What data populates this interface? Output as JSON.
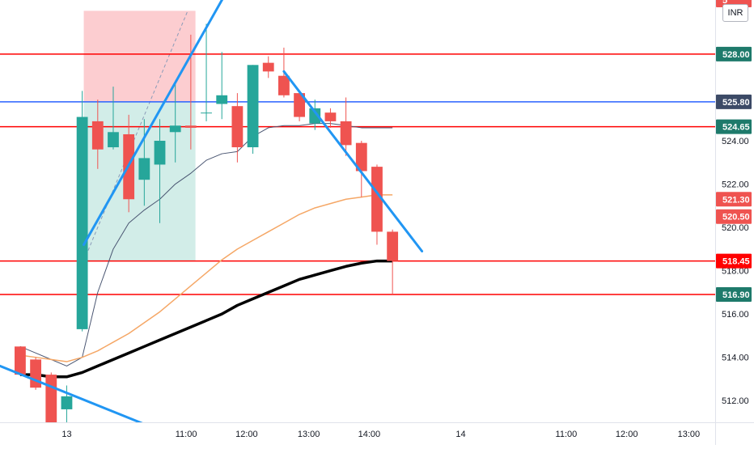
{
  "chart_data": {
    "type": "candlestick",
    "currency": "INR",
    "y_ticks": [
      512,
      514,
      516,
      518,
      520,
      522,
      524
    ],
    "y_tick_labels": [
      "512.00",
      "514.00",
      "516.00",
      "518.00",
      "520.00",
      "522.00",
      "524.00"
    ],
    "ylim": [
      511.0,
      530.5
    ],
    "x_ticks": [
      {
        "bar": 3.0,
        "label": "13"
      },
      {
        "bar": 10.7,
        "label": "11:00"
      },
      {
        "bar": 14.6,
        "label": "12:00"
      },
      {
        "bar": 18.6,
        "label": "13:00"
      },
      {
        "bar": 22.5,
        "label": "14:00"
      },
      {
        "bar": 28.4,
        "label": "14"
      },
      {
        "bar": 35.2,
        "label": "11:00"
      },
      {
        "bar": 39.1,
        "label": "12:00"
      },
      {
        "bar": 43.1,
        "label": "13:00"
      }
    ],
    "xlim": [
      -1.3,
      44.8
    ],
    "bull_color": "#26a69a",
    "bear_color": "#ef5350",
    "candles": [
      {
        "o": 514.5,
        "h": 514.5,
        "l": 513.2,
        "c": 513.2
      },
      {
        "o": 513.9,
        "h": 514.0,
        "l": 512.5,
        "c": 512.6
      },
      {
        "o": 513.2,
        "h": 513.3,
        "l": 510.8,
        "c": 511.0
      },
      {
        "o": 511.6,
        "h": 512.7,
        "l": 511.0,
        "c": 512.2
      },
      {
        "o": 515.3,
        "h": 526.3,
        "l": 515.2,
        "c": 525.1
      },
      {
        "o": 524.9,
        "h": 525.9,
        "l": 522.7,
        "c": 523.6
      },
      {
        "o": 523.7,
        "h": 526.5,
        "l": 523.6,
        "c": 524.4
      },
      {
        "o": 524.3,
        "h": 525.2,
        "l": 520.7,
        "c": 521.3
      },
      {
        "o": 522.2,
        "h": 525.0,
        "l": 521.0,
        "c": 523.2
      },
      {
        "o": 522.9,
        "h": 525.0,
        "l": 520.2,
        "c": 524.0
      },
      {
        "o": 524.4,
        "h": 526.7,
        "l": 523.0,
        "c": 524.7
      },
      {
        "o": 524.7,
        "h": 528.9,
        "l": 523.6,
        "c": 524.6
      },
      {
        "o": 525.3,
        "h": 529.4,
        "l": 524.9,
        "c": 525.3
      },
      {
        "o": 525.7,
        "h": 528.1,
        "l": 525.0,
        "c": 526.1
      },
      {
        "o": 525.6,
        "h": 526.2,
        "l": 523.0,
        "c": 523.7
      },
      {
        "o": 523.7,
        "h": 527.5,
        "l": 523.4,
        "c": 527.5
      },
      {
        "o": 527.6,
        "h": 527.9,
        "l": 526.9,
        "c": 527.2
      },
      {
        "o": 527.0,
        "h": 528.3,
        "l": 526.0,
        "c": 526.1
      },
      {
        "o": 526.2,
        "h": 526.3,
        "l": 524.9,
        "c": 525.1
      },
      {
        "o": 524.8,
        "h": 525.9,
        "l": 524.5,
        "c": 525.5
      },
      {
        "o": 525.3,
        "h": 525.5,
        "l": 524.6,
        "c": 524.9
      },
      {
        "o": 524.9,
        "h": 526.0,
        "l": 523.3,
        "c": 523.8
      },
      {
        "o": 523.9,
        "h": 524.0,
        "l": 521.4,
        "c": 522.6
      },
      {
        "o": 522.8,
        "h": 522.9,
        "l": 519.2,
        "c": 519.8
      },
      {
        "o": 519.8,
        "h": 519.9,
        "l": 516.9,
        "c": 518.45
      }
    ],
    "ema_orange": [
      514.1,
      514.0,
      513.9,
      513.8,
      514.0,
      514.3,
      514.7,
      515.1,
      515.6,
      516.1,
      516.7,
      517.3,
      517.9,
      518.5,
      519.0,
      519.4,
      519.8,
      520.2,
      520.6,
      520.9,
      521.1,
      521.3,
      521.4,
      521.5,
      521.5
    ],
    "ma_black": [
      513.2,
      513.2,
      513.1,
      513.1,
      513.3,
      513.6,
      513.9,
      514.2,
      514.5,
      514.8,
      515.1,
      515.4,
      515.7,
      516.0,
      516.4,
      516.7,
      517.0,
      517.3,
      517.6,
      517.8,
      518.0,
      518.2,
      518.35,
      518.45,
      518.45
    ],
    "vwap_dark": [
      514.5,
      514.2,
      513.9,
      513.6,
      514.0,
      517.0,
      519.0,
      520.2,
      520.8,
      521.3,
      522.0,
      522.5,
      523.1,
      523.4,
      523.5,
      524.2,
      524.6,
      524.7,
      524.7,
      524.8,
      524.8,
      524.7,
      524.6,
      524.6,
      524.6
    ],
    "horizontal_levels": [
      {
        "value": 528.0,
        "label": "528.00",
        "color": "#ff0000"
      },
      {
        "value": 525.8,
        "label": "525.80",
        "color": "#2962ff"
      },
      {
        "value": 524.65,
        "label": "524.65",
        "color": "#ff0000"
      },
      {
        "value": 518.45,
        "label": "518.45",
        "color": "#ff0000"
      },
      {
        "value": 516.9,
        "label": "516.90",
        "color": "#ff0000"
      }
    ],
    "price_tags": [
      {
        "value": 530.5,
        "label": "5",
        "color": "#ef5350"
      },
      {
        "value": 521.3,
        "label": "521.30",
        "color": "#ef5350"
      },
      {
        "value": 520.5,
        "label": "520.50",
        "color": "#ef5350"
      }
    ],
    "trendlines": [
      {
        "from": {
          "bar": -1.3,
          "price": 513.6
        },
        "to": {
          "bar": 8.4,
          "price": 510.8
        }
      },
      {
        "from": {
          "bar": 4.1,
          "price": 519.2
        },
        "to": {
          "bar": 13.4,
          "price": 531.0
        }
      },
      {
        "from": {
          "bar": 17.0,
          "price": 527.2
        },
        "to": {
          "bar": 25.9,
          "price": 518.9
        }
      }
    ],
    "position_tool": {
      "bar_start": 4.1,
      "bar_end": 11.3,
      "entry": 525.8,
      "stop": 530.0,
      "target": 518.45
    }
  }
}
